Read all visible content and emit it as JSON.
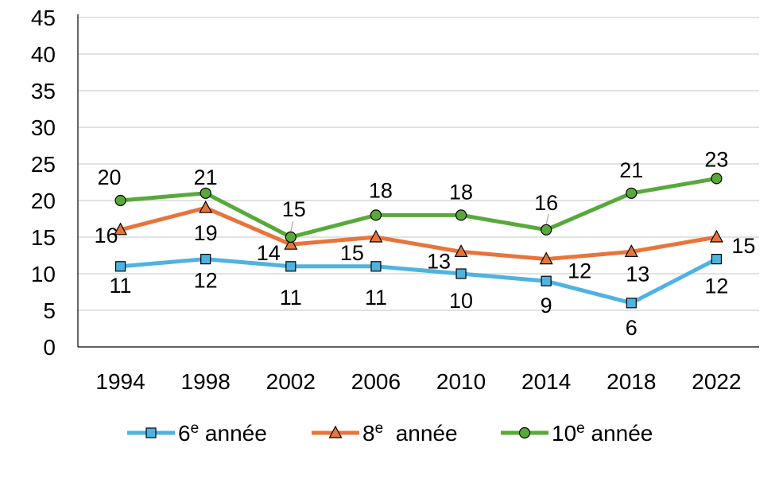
{
  "chart_data": {
    "type": "line",
    "categories": [
      "1994",
      "1998",
      "2002",
      "2006",
      "2010",
      "2014",
      "2018",
      "2022"
    ],
    "ylim": [
      0,
      45
    ],
    "yticks": [
      0,
      5,
      10,
      15,
      20,
      25,
      30,
      35,
      40,
      45
    ],
    "grid": true,
    "legend_position": "bottom",
    "series": [
      {
        "name": "6e année",
        "name_base": "6",
        "name_sup": "e",
        "name_rest": " année",
        "color": "#4FB3E0",
        "marker": "square",
        "values": [
          11,
          12,
          11,
          11,
          10,
          9,
          6,
          12
        ],
        "labels": [
          "11",
          "12",
          "11",
          "11",
          "10",
          "9",
          "6",
          "12"
        ]
      },
      {
        "name": "8e année",
        "name_base": "8",
        "name_sup": "e",
        "name_rest": "  année",
        "color": "#E8743B",
        "marker": "triangle",
        "values": [
          16,
          19,
          14,
          15,
          13,
          12,
          13,
          15
        ],
        "labels": [
          "16",
          "19",
          "14",
          "15",
          "13",
          "12",
          "13",
          "15"
        ]
      },
      {
        "name": "10e année",
        "name_base": "10",
        "name_sup": "e",
        "name_rest": " année",
        "color": "#58A93A",
        "marker": "circle",
        "values": [
          20,
          21,
          15,
          18,
          18,
          16,
          21,
          23
        ],
        "labels": [
          "20",
          "21",
          "15",
          "18",
          "18",
          "16",
          "21",
          "23"
        ]
      }
    ]
  }
}
